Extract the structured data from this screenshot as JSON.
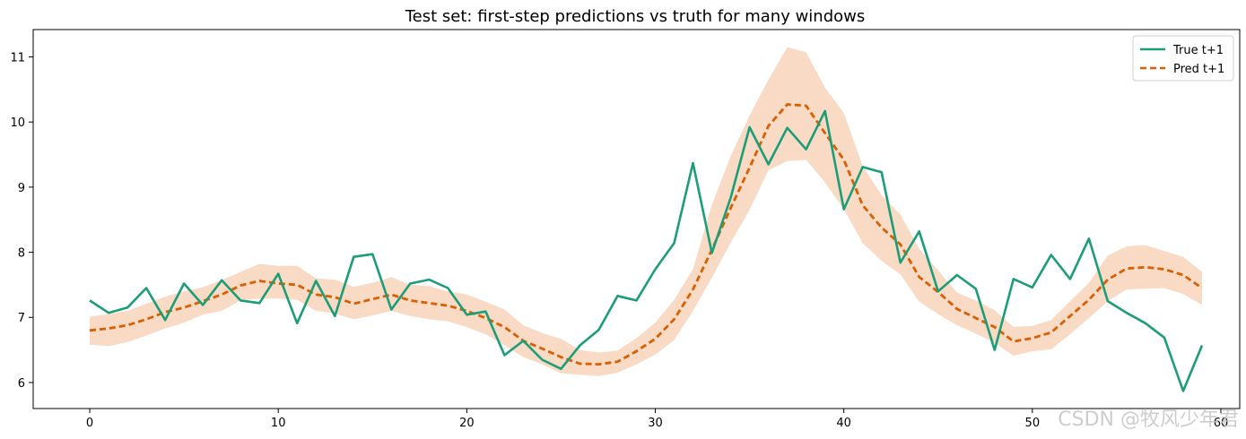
{
  "chart_data": {
    "type": "line",
    "title": "Test set: first-step predictions vs truth for many windows",
    "xlabel": "",
    "ylabel": "",
    "xlim": [
      -3,
      61
    ],
    "ylim": [
      5.6,
      11.42
    ],
    "xticks": [
      0,
      10,
      20,
      30,
      40,
      50,
      60
    ],
    "yticks": [
      6,
      7,
      8,
      9,
      10,
      11
    ],
    "grid": false,
    "legend_position": "top-right",
    "series": [
      {
        "name": "True t+1",
        "color": "#1b9e77",
        "style": "solid",
        "values": [
          7.26,
          7.07,
          7.15,
          7.45,
          6.96,
          7.52,
          7.19,
          7.57,
          7.26,
          7.22,
          7.67,
          6.91,
          7.56,
          7.02,
          7.93,
          7.97,
          7.12,
          7.52,
          7.58,
          7.45,
          7.04,
          7.09,
          6.42,
          6.64,
          6.35,
          6.21,
          6.57,
          6.81,
          7.33,
          7.26,
          7.74,
          8.14,
          9.37,
          7.99,
          8.84,
          9.92,
          9.35,
          9.91,
          9.58,
          10.17,
          8.66,
          9.31,
          9.23,
          7.84,
          8.32,
          7.4,
          7.65,
          7.44,
          6.5,
          7.59,
          7.46,
          7.96,
          7.59,
          8.21,
          7.25,
          7.07,
          6.91,
          6.69,
          5.87,
          6.57
        ]
      },
      {
        "name": "Pred t+1",
        "color": "#d95f02",
        "style": "dashed",
        "values": [
          6.8,
          6.83,
          6.88,
          6.97,
          7.08,
          7.15,
          7.25,
          7.35,
          7.49,
          7.56,
          7.52,
          7.5,
          7.35,
          7.31,
          7.21,
          7.28,
          7.35,
          7.26,
          7.22,
          7.18,
          7.1,
          6.99,
          6.85,
          6.64,
          6.52,
          6.39,
          6.29,
          6.28,
          6.32,
          6.48,
          6.67,
          6.97,
          7.43,
          8.04,
          8.68,
          9.3,
          9.94,
          10.27,
          10.25,
          9.83,
          9.42,
          8.72,
          8.38,
          8.12,
          7.62,
          7.39,
          7.13,
          6.99,
          6.85,
          6.63,
          6.68,
          6.77,
          7.02,
          7.27,
          7.58,
          7.75,
          7.77,
          7.74,
          7.65,
          7.45
        ]
      }
    ],
    "band": {
      "color": "#f4c6a6",
      "upper": [
        7.01,
        7.05,
        7.1,
        7.21,
        7.32,
        7.4,
        7.46,
        7.57,
        7.7,
        7.82,
        7.79,
        7.79,
        7.6,
        7.58,
        7.47,
        7.53,
        7.62,
        7.5,
        7.48,
        7.4,
        7.35,
        7.24,
        7.12,
        6.88,
        6.76,
        6.67,
        6.5,
        6.46,
        6.49,
        6.68,
        6.92,
        7.27,
        7.74,
        8.73,
        9.48,
        10.1,
        10.65,
        11.15,
        11.07,
        10.53,
        10.14,
        9.32,
        8.88,
        8.58,
        8.05,
        7.72,
        7.38,
        7.26,
        7.11,
        6.85,
        6.87,
        6.96,
        7.25,
        7.53,
        7.95,
        8.09,
        8.11,
        8.02,
        7.93,
        7.7
      ],
      "lower": [
        6.58,
        6.56,
        6.62,
        6.72,
        6.83,
        6.92,
        7.04,
        7.1,
        7.26,
        7.29,
        7.29,
        7.27,
        7.1,
        7.06,
        6.97,
        7.03,
        7.1,
        7.02,
        6.97,
        6.94,
        6.85,
        6.74,
        6.57,
        6.39,
        6.28,
        6.14,
        6.12,
        6.1,
        6.15,
        6.28,
        6.43,
        6.65,
        7.1,
        7.61,
        8.15,
        8.65,
        9.26,
        9.4,
        9.42,
        9.07,
        8.66,
        8.14,
        7.87,
        7.66,
        7.24,
        7.05,
        6.88,
        6.75,
        6.61,
        6.41,
        6.48,
        6.51,
        6.74,
        6.99,
        7.25,
        7.43,
        7.44,
        7.45,
        7.36,
        7.19
      ]
    }
  },
  "watermark": "CSDN @牧风少年君"
}
